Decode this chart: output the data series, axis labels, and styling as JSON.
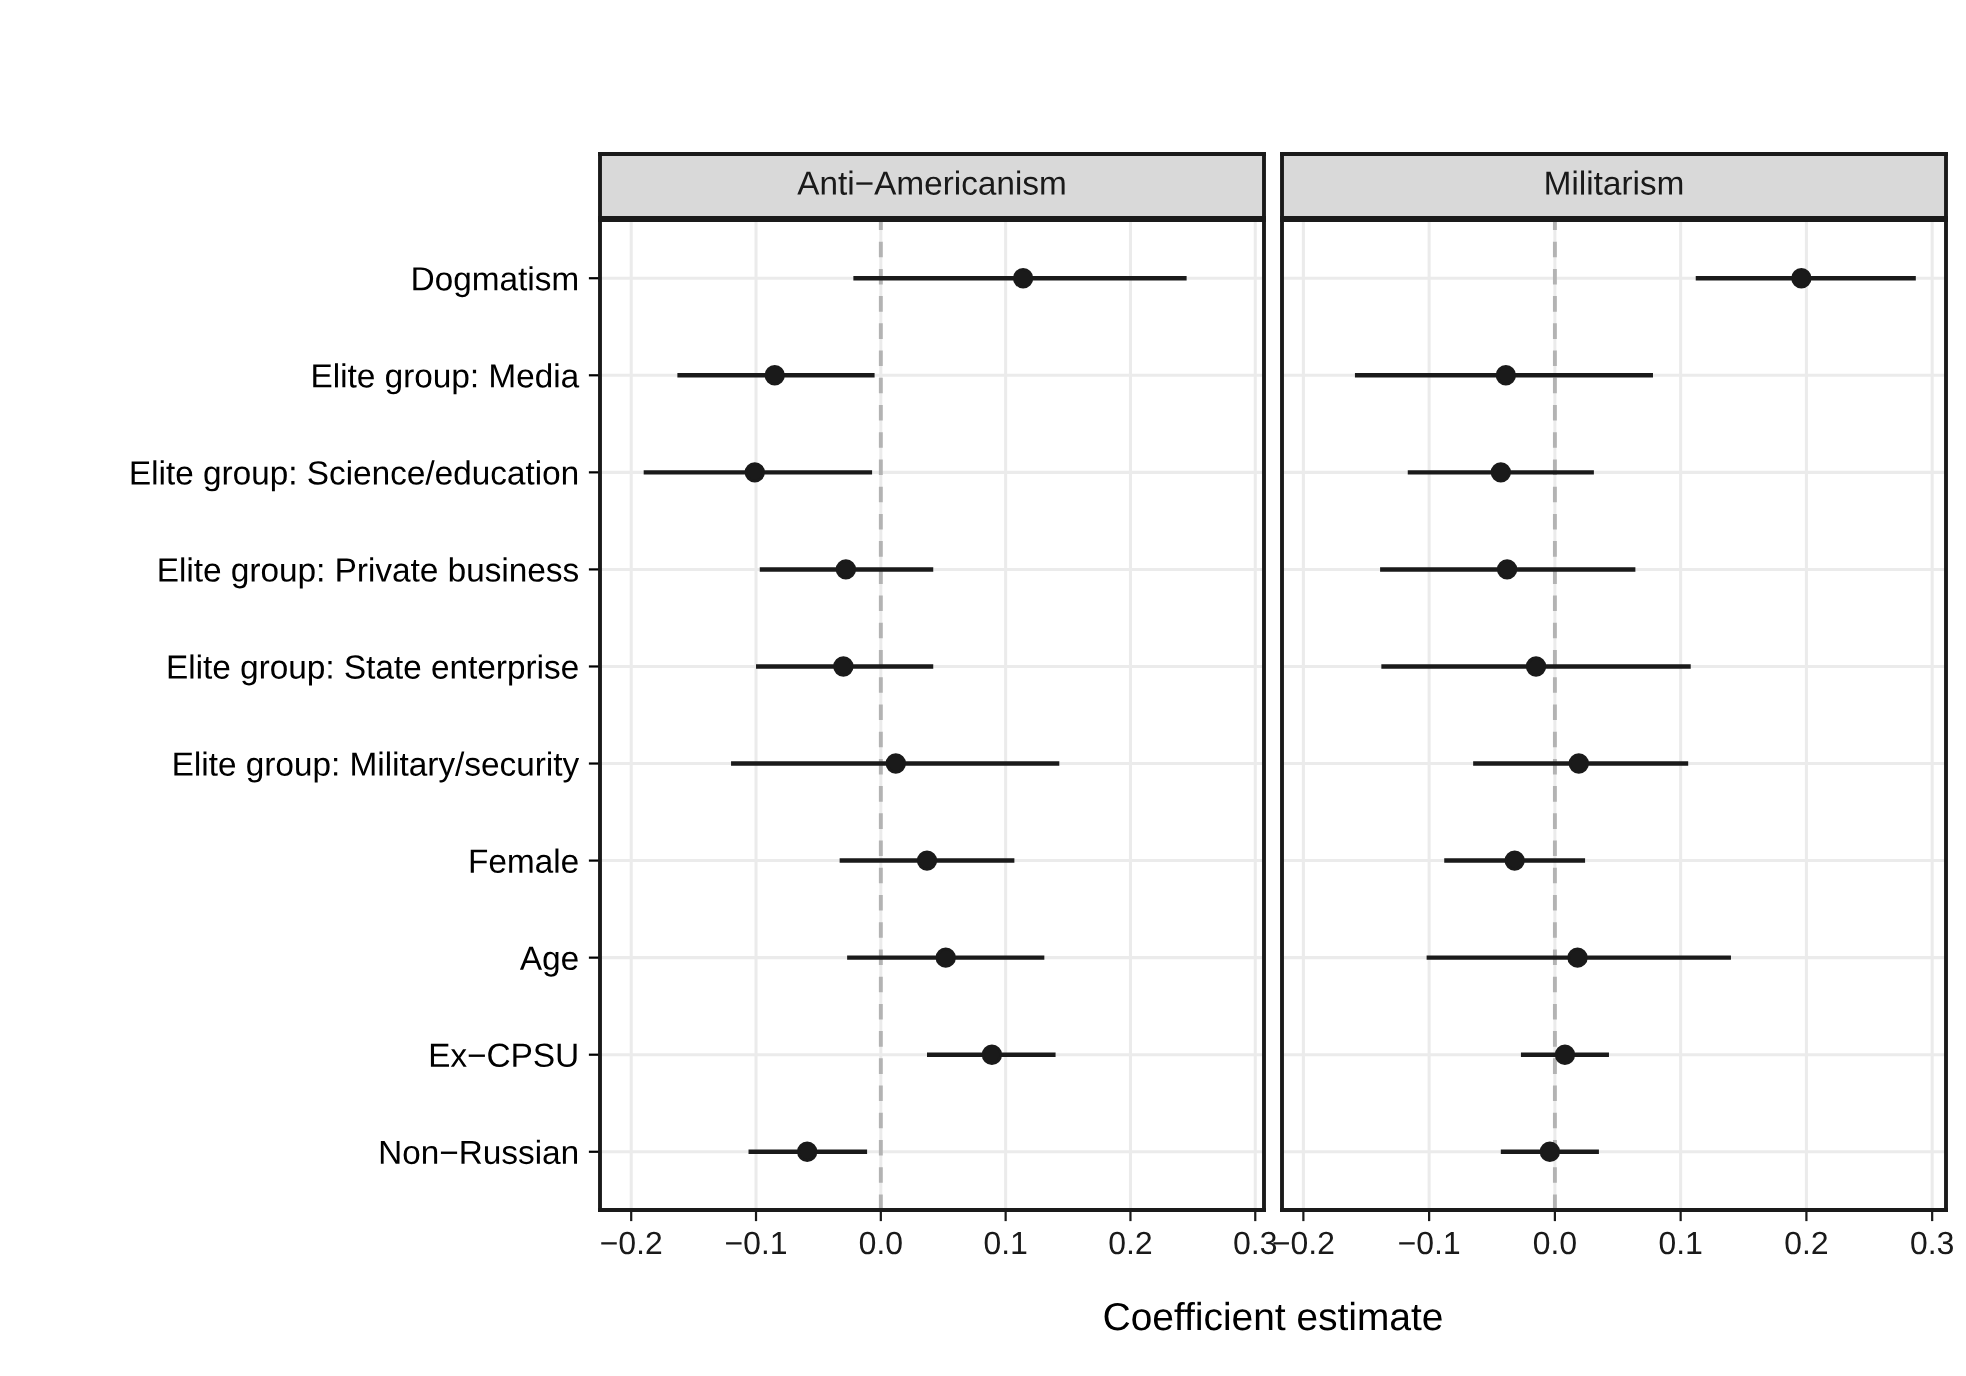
{
  "chart_data": [
    {
      "type": "scatter",
      "orientation": "horizontal",
      "title": "Anti−Americanism",
      "xlabel": "Coefficient estimate",
      "categories": [
        "Dogmatism",
        "Elite group: Media",
        "Elite group: Science/education",
        "Elite group: Private business",
        "Elite group: State enterprise",
        "Elite group: Military/security",
        "Female",
        "Age",
        "Ex−CPSU",
        "Non−Russian"
      ],
      "series": [
        {
          "color": "#1a1a1a",
          "values": [
            0.114,
            -0.085,
            -0.101,
            -0.028,
            -0.03,
            0.012,
            0.037,
            0.052,
            0.089,
            -0.059
          ],
          "errors": [
            [
              -0.022,
              0.245
            ],
            [
              -0.163,
              -0.005
            ],
            [
              -0.19,
              -0.007
            ],
            [
              -0.097,
              0.042
            ],
            [
              -0.1,
              0.042
            ],
            [
              -0.12,
              0.143
            ],
            [
              -0.033,
              0.107
            ],
            [
              -0.027,
              0.131
            ],
            [
              0.037,
              0.14
            ],
            [
              -0.106,
              -0.011
            ]
          ]
        }
      ],
      "xlim": [
        -0.225,
        0.307
      ],
      "xticks": [
        {
          "value": -0.2,
          "label": "−0.2"
        },
        {
          "value": -0.1,
          "label": "−0.1"
        },
        {
          "value": 0.0,
          "label": "0.0"
        },
        {
          "value": 0.1,
          "label": "0.1"
        },
        {
          "value": 0.2,
          "label": "0.2"
        },
        {
          "value": 0.3,
          "label": "0.3"
        }
      ],
      "ref_lines": [
        {
          "axis": "x",
          "value": 0,
          "label": null,
          "color": "#b3b3b3",
          "line_style": "dashed"
        }
      ],
      "grid": true,
      "marker": "circle"
    },
    {
      "type": "scatter",
      "orientation": "horizontal",
      "title": "Militarism",
      "categories": [
        null,
        null,
        null,
        null,
        null,
        null,
        null,
        null,
        null,
        null
      ],
      "series": [
        {
          "color": "#1a1a1a",
          "values": [
            0.196,
            -0.039,
            -0.043,
            -0.038,
            -0.015,
            0.019,
            -0.032,
            0.018,
            0.008,
            -0.004
          ],
          "errors": [
            [
              0.112,
              0.287
            ],
            [
              -0.159,
              0.078
            ],
            [
              -0.117,
              0.031
            ],
            [
              -0.139,
              0.064
            ],
            [
              -0.138,
              0.108
            ],
            [
              -0.065,
              0.106
            ],
            [
              -0.088,
              0.024
            ],
            [
              -0.102,
              0.14
            ],
            [
              -0.027,
              0.043
            ],
            [
              -0.043,
              0.035
            ]
          ]
        }
      ],
      "xlim": [
        -0.217,
        0.311
      ],
      "xticks": [
        {
          "value": -0.2,
          "label": "−0.2"
        },
        {
          "value": -0.1,
          "label": "−0.1"
        },
        {
          "value": 0.0,
          "label": "0.0"
        },
        {
          "value": 0.1,
          "label": "0.1"
        },
        {
          "value": 0.2,
          "label": "0.2"
        },
        {
          "value": 0.3,
          "label": "0.3"
        }
      ],
      "ref_lines": [
        {
          "axis": "x",
          "value": 0,
          "label": null,
          "color": "#b3b3b3",
          "line_style": "dashed"
        }
      ],
      "grid": true,
      "marker": "circle",
      "tick_labels": "x"
    }
  ]
}
